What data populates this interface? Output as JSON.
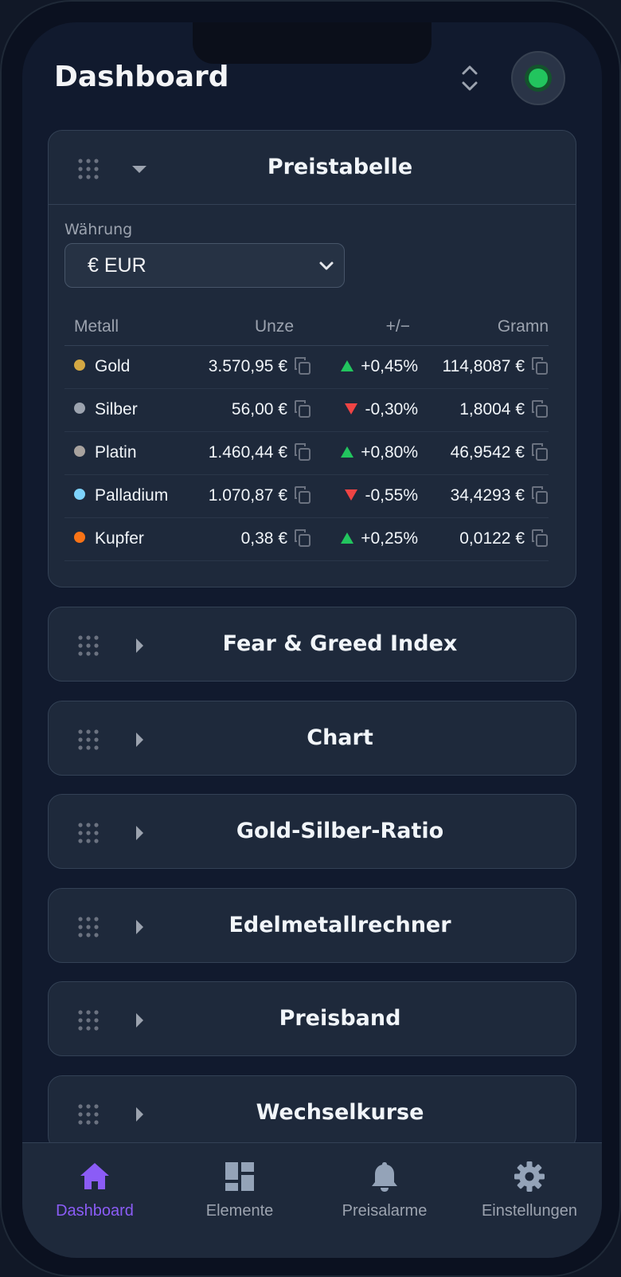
{
  "header": {
    "title": "Dashboard"
  },
  "price_table": {
    "title": "Preistabelle",
    "currency_label": "Währung",
    "currency_value": "€ EUR",
    "columns": [
      "Metall",
      "Unze",
      "+/−",
      "Gramn"
    ],
    "rows": [
      {
        "metal": "Gold",
        "dot_color": "#d4a843",
        "ounce": "3.570,95 €",
        "change": "+0,45%",
        "direction": "up",
        "gram": "114,8087 €"
      },
      {
        "metal": "Silber",
        "dot_color": "#9ca3af",
        "ounce": "56,00 €",
        "change": "-0,30%",
        "direction": "down",
        "gram": "1,8004 €"
      },
      {
        "metal": "Platin",
        "dot_color": "#a8a29e",
        "ounce": "1.460,44 €",
        "change": "+0,80%",
        "direction": "up",
        "gram": "46,9542 €"
      },
      {
        "metal": "Palladium",
        "dot_color": "#7dd3fc",
        "ounce": "1.070,87 €",
        "change": "-0,55%",
        "direction": "down",
        "gram": "34,4293 €"
      },
      {
        "metal": "Kupfer",
        "dot_color": "#f97316",
        "ounce": "0,38 €",
        "change": "+0,25%",
        "direction": "up",
        "gram": "0,0122 €"
      }
    ]
  },
  "widgets": [
    {
      "title": "Fear & Greed Index"
    },
    {
      "title": "Chart"
    },
    {
      "title": "Gold-Silber-Ratio"
    },
    {
      "title": "Edelmetallrechner"
    },
    {
      "title": "Preisband"
    },
    {
      "title": "Wechselkurse"
    }
  ],
  "nav": {
    "items": [
      {
        "label": "Dashboard",
        "icon": "home-icon",
        "active": true
      },
      {
        "label": "Elemente",
        "icon": "layout-icon",
        "active": false
      },
      {
        "label": "Preisalarme",
        "icon": "bell-icon",
        "active": false
      },
      {
        "label": "Einstellungen",
        "icon": "gear-icon",
        "active": false
      }
    ]
  },
  "colors": {
    "accent": "#8b5cf6",
    "up": "#22c55e",
    "down": "#ef4444",
    "status": "#22c55e"
  }
}
